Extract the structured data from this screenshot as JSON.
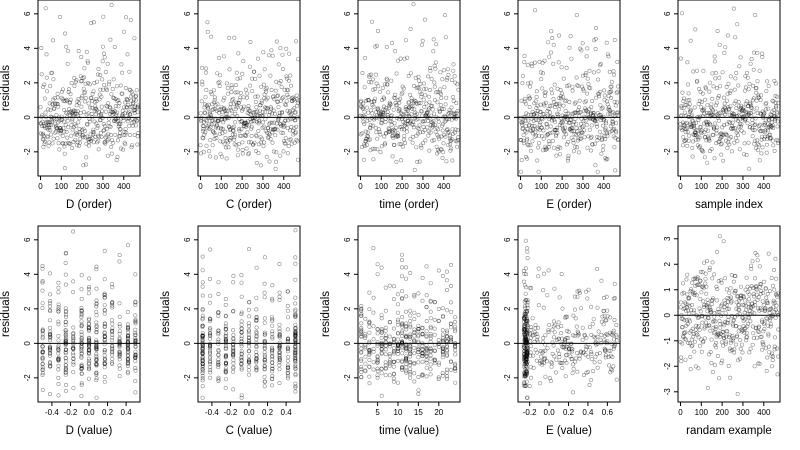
{
  "chart_data": [
    {
      "type": "scatter",
      "xlabel": "D (order)",
      "ylabel": "residuals",
      "xlim": [
        -12,
        478
      ],
      "ylim": [
        -3.4,
        6.8
      ],
      "xticks": [
        0,
        100,
        200,
        300,
        400
      ],
      "yticks": [
        -2,
        0,
        2,
        4,
        6
      ],
      "refline_y": 0,
      "point_count": 470,
      "profile": "order"
    },
    {
      "type": "scatter",
      "xlabel": "C (order)",
      "ylabel": "residuals",
      "xlim": [
        -12,
        478
      ],
      "ylim": [
        -3.4,
        6.8
      ],
      "xticks": [
        0,
        100,
        200,
        300,
        400
      ],
      "yticks": [
        -2,
        0,
        2,
        4,
        6
      ],
      "refline_y": 0,
      "point_count": 470,
      "profile": "order"
    },
    {
      "type": "scatter",
      "xlabel": "time (order)",
      "ylabel": "residuals",
      "xlim": [
        -12,
        478
      ],
      "ylim": [
        -3.4,
        6.8
      ],
      "xticks": [
        0,
        100,
        200,
        300,
        400
      ],
      "yticks": [
        -2,
        0,
        2,
        4,
        6
      ],
      "refline_y": 0,
      "point_count": 470,
      "profile": "order"
    },
    {
      "type": "scatter",
      "xlabel": "E (order)",
      "ylabel": "residuals",
      "xlim": [
        -12,
        478
      ],
      "ylim": [
        -3.4,
        6.8
      ],
      "xticks": [
        0,
        100,
        200,
        300,
        400
      ],
      "yticks": [
        -2,
        0,
        2,
        4,
        6
      ],
      "refline_y": 0,
      "point_count": 470,
      "profile": "order"
    },
    {
      "type": "scatter",
      "xlabel": "sample index",
      "ylabel": "residuals",
      "xlim": [
        -12,
        478
      ],
      "ylim": [
        -3.4,
        6.8
      ],
      "xticks": [
        0,
        100,
        200,
        300,
        400
      ],
      "yticks": [
        -2,
        0,
        2,
        4,
        6
      ],
      "refline_y": 0,
      "point_count": 470,
      "profile": "order"
    },
    {
      "type": "scatter",
      "xlabel": "D (value)",
      "ylabel": "residuals",
      "xlim": [
        -0.55,
        0.55
      ],
      "ylim": [
        -3.4,
        6.8
      ],
      "xticks": [
        -0.4,
        -0.2,
        0.0,
        0.2,
        0.4
      ],
      "yticks": [
        -2,
        0,
        2,
        4,
        6
      ],
      "refline_y": 0,
      "point_count": 470,
      "profile": "d_value",
      "x_clusters": [
        -0.5,
        -0.42,
        -0.33,
        -0.25,
        -0.17,
        -0.08,
        0.0,
        0.08,
        0.17,
        0.25,
        0.33,
        0.42,
        0.5
      ]
    },
    {
      "type": "scatter",
      "xlabel": "C (value)",
      "ylabel": "residuals",
      "xlim": [
        -0.55,
        0.55
      ],
      "ylim": [
        -3.4,
        6.8
      ],
      "xticks": [
        -0.4,
        -0.2,
        0.0,
        0.2,
        0.4
      ],
      "yticks": [
        -2,
        0,
        2,
        4,
        6
      ],
      "refline_y": 0,
      "point_count": 470,
      "profile": "c_value",
      "x_clusters": [
        -0.5,
        -0.5,
        -0.42,
        -0.33,
        -0.25,
        -0.17,
        -0.08,
        0.0,
        0.08,
        0.17,
        0.25,
        0.33,
        0.42,
        0.5,
        0.5
      ]
    },
    {
      "type": "scatter",
      "xlabel": "time (value)",
      "ylabel": "residuals",
      "xlim": [
        0.2,
        25.2
      ],
      "ylim": [
        -3.4,
        6.8
      ],
      "xticks": [
        5,
        10,
        15,
        20
      ],
      "yticks": [
        -2,
        0,
        2,
        4,
        6
      ],
      "refline_y": 0,
      "point_count": 470,
      "profile": "time_value",
      "x_clusters": [
        1,
        2,
        3,
        4,
        5,
        6,
        7,
        8,
        9,
        10,
        11,
        11,
        12,
        12,
        13,
        14,
        15,
        16,
        17,
        18,
        19,
        20,
        21,
        22,
        23,
        24
      ]
    },
    {
      "type": "scatter",
      "xlabel": "E (value)",
      "ylabel": "residuals",
      "xlim": [
        -0.32,
        0.73
      ],
      "ylim": [
        -3.4,
        6.8
      ],
      "xticks": [
        -0.2,
        0.0,
        0.2,
        0.4,
        0.6
      ],
      "yticks": [
        -2,
        0,
        2,
        4,
        6
      ],
      "refline_y": 0,
      "point_count": 470,
      "profile": "e_value"
    },
    {
      "type": "scatter",
      "xlabel": "randam example",
      "ylabel": "residuals",
      "xlim": [
        -12,
        478
      ],
      "ylim": [
        -3.4,
        3.5
      ],
      "xticks": [
        0,
        100,
        200,
        300,
        400
      ],
      "yticks": [
        -3,
        -2,
        -1,
        0,
        1,
        2,
        3
      ],
      "refline_y": 0,
      "point_count": 470,
      "profile": "random"
    }
  ]
}
